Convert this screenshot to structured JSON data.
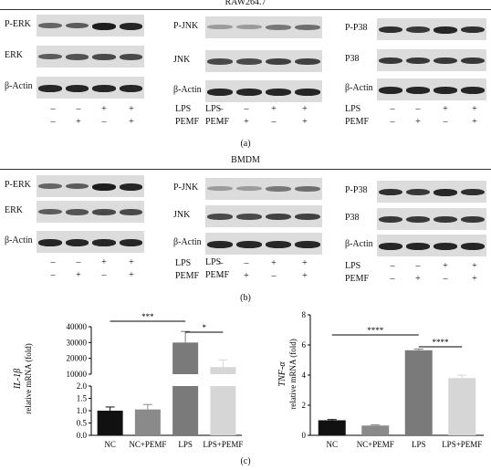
{
  "panel_a": {
    "cell": "RAW264.7",
    "caption": "(a)",
    "blocks": [
      {
        "rows": [
          "P-ERK",
          "ERK",
          "β-Actin"
        ]
      },
      {
        "rows": [
          "P-JNK",
          "JNK",
          "β-Actin"
        ]
      },
      {
        "rows": [
          "P-P38",
          "P38",
          "β-Actin"
        ]
      }
    ]
  },
  "panel_b": {
    "cell": "BMDM",
    "caption": "(b)",
    "blocks": [
      {
        "rows": [
          "P-ERK",
          "ERK",
          "β-Actin"
        ]
      },
      {
        "rows": [
          "P-JNK",
          "JNK",
          "β-Actin"
        ]
      },
      {
        "rows": [
          "P-P38",
          "P38",
          "β-Actin"
        ]
      }
    ]
  },
  "treatments": {
    "lps_label": "LPS",
    "pemf_label": "PEMF",
    "lps": [
      "–",
      "–",
      "+",
      "+"
    ],
    "pemf": [
      "–",
      "+",
      "–",
      "+"
    ]
  },
  "panel_c": {
    "caption": "(c)",
    "chart_data": [
      {
        "type": "bar",
        "ylabel_line1": "IL-1β",
        "ylabel_line2": "relative mRNA (fold)",
        "categories": [
          "NC",
          "NC+PEMF",
          "LPS",
          "LPS+PEMF"
        ],
        "values": [
          1.0,
          1.05,
          30000,
          14500
        ],
        "errors": [
          0.15,
          0.2,
          7000,
          4500
        ],
        "colors": [
          "#111111",
          "#8a8a8a",
          "#7a7a7a",
          "#d6d6d6"
        ],
        "y_axis_break": true,
        "lower_ticks": [
          "0.0",
          "0.5",
          "1.0",
          "1.5",
          "2.0"
        ],
        "upper_ticks": [
          "10000",
          "20000",
          "30000",
          "40000"
        ],
        "significance": [
          {
            "from": "NC",
            "to": "LPS",
            "label": "***"
          },
          {
            "from": "LPS",
            "to": "LPS+PEMF",
            "label": "*"
          }
        ]
      },
      {
        "type": "bar",
        "ylabel_line1": "TNF-α",
        "ylabel_line2": "relative mRNA (fold)",
        "categories": [
          "NC",
          "NC+PEMF",
          "LPS",
          "LPS+PEMF"
        ],
        "values": [
          1.0,
          0.65,
          5.65,
          3.8
        ],
        "errors": [
          0.05,
          0.05,
          0.08,
          0.2
        ],
        "colors": [
          "#111111",
          "#8a8a8a",
          "#7a7a7a",
          "#d6d6d6"
        ],
        "ylim": [
          0,
          8
        ],
        "ticks": [
          "0",
          "2",
          "4",
          "6",
          "8"
        ],
        "significance": [
          {
            "from": "NC",
            "to": "LPS",
            "label": "****"
          },
          {
            "from": "LPS",
            "to": "LPS+PEMF",
            "label": "****"
          }
        ]
      }
    ]
  }
}
